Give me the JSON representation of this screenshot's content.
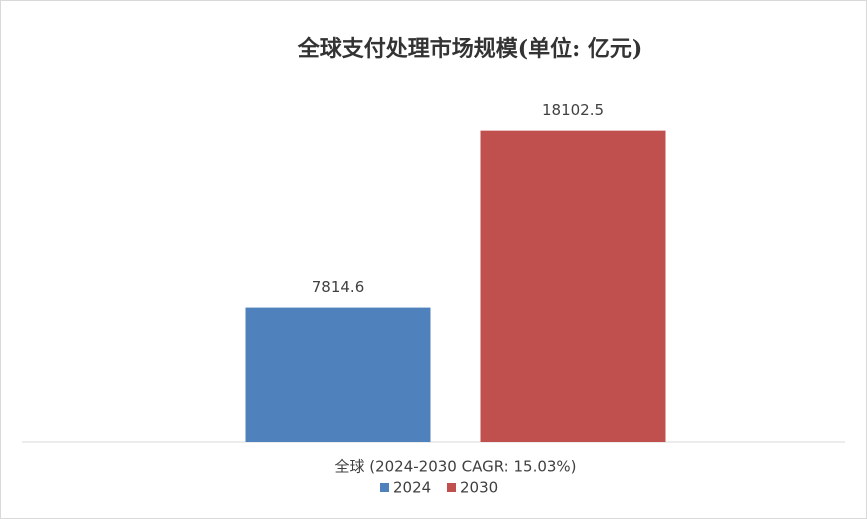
{
  "chart_data": {
    "type": "bar",
    "title": "全球支付处理市场规模(单位: 亿元)",
    "categories": [
      "全球 (2024-2030 CAGR: 15.03%)"
    ],
    "series": [
      {
        "name": "2024",
        "color": "#4f81bd",
        "values": [
          7814.6
        ]
      },
      {
        "name": "2030",
        "color": "#c0504d",
        "values": [
          18102.5
        ]
      }
    ],
    "ylim": [
      0,
      20000
    ],
    "legend": "bottom"
  }
}
